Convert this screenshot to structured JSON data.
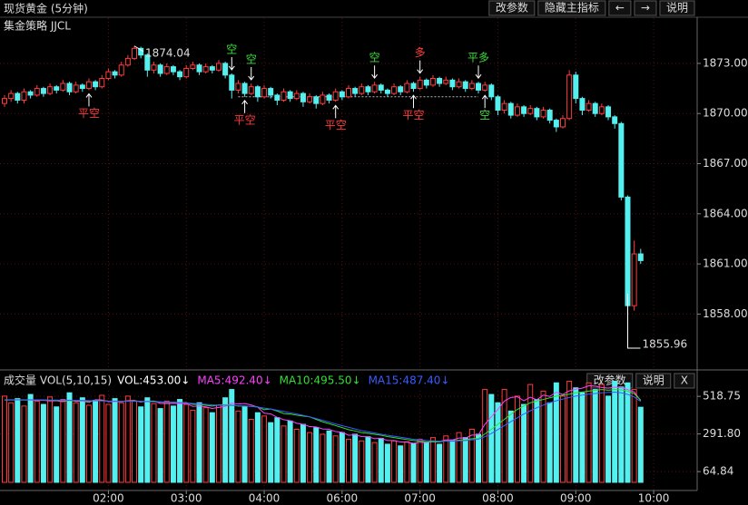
{
  "header": {
    "title": "现货黄金 (5分钟)",
    "buttons": [
      "改参数",
      "隐藏主指标",
      "←",
      "→",
      "说明"
    ]
  },
  "chart_data": [
    {
      "type": "candlestick",
      "title": "集金策略 JJCL",
      "up_color": "#ff3c3c",
      "down_color": "#54f0f0",
      "xlim": [
        -0.7,
        106.7
      ],
      "xticks": [
        {
          "value": 16,
          "label": "02:00"
        },
        {
          "value": 28,
          "label": "03:00"
        },
        {
          "value": 40,
          "label": "04:00"
        },
        {
          "value": 52,
          "label": "06:00"
        },
        {
          "value": 64,
          "label": "07:00"
        },
        {
          "value": 76,
          "label": "08:00"
        },
        {
          "value": 88,
          "label": "09:00"
        },
        {
          "value": 100,
          "label": "10:00"
        }
      ],
      "ylim": [
        1854.82,
        1875.6
      ],
      "yticks": [
        {
          "value": 1873,
          "label": "1873.00"
        },
        {
          "value": 1870,
          "label": "1870.00"
        },
        {
          "value": 1867,
          "label": "1867.00"
        },
        {
          "value": 1864,
          "label": "1864.00"
        },
        {
          "value": 1861,
          "label": "1861.00"
        },
        {
          "value": 1858,
          "label": "1858.00"
        }
      ],
      "grid": true,
      "candles": [
        [
          1870.6,
          1871.1,
          1870.4,
          1870.9
        ],
        [
          1870.9,
          1871.4,
          1870.7,
          1871.2
        ],
        [
          1871.2,
          1871.3,
          1870.6,
          1870.8
        ],
        [
          1870.8,
          1871.5,
          1870.6,
          1871.3
        ],
        [
          1871.3,
          1871.4,
          1870.9,
          1871.1
        ],
        [
          1871.1,
          1871.7,
          1871.0,
          1871.5
        ],
        [
          1871.5,
          1871.6,
          1871.0,
          1871.2
        ],
        [
          1871.2,
          1871.8,
          1871.1,
          1871.6
        ],
        [
          1871.6,
          1871.7,
          1871.2,
          1871.4
        ],
        [
          1871.4,
          1872.0,
          1871.3,
          1871.8
        ],
        [
          1871.8,
          1871.9,
          1871.1,
          1871.3
        ],
        [
          1871.3,
          1871.9,
          1871.2,
          1871.7
        ],
        [
          1871.7,
          1871.8,
          1871.3,
          1871.5
        ],
        [
          1871.5,
          1872.1,
          1871.4,
          1871.9
        ],
        [
          1871.9,
          1872.0,
          1871.4,
          1871.6
        ],
        [
          1871.6,
          1872.3,
          1871.5,
          1872.1
        ],
        [
          1872.1,
          1872.7,
          1872.0,
          1872.5
        ],
        [
          1872.5,
          1872.6,
          1872.1,
          1872.3
        ],
        [
          1872.3,
          1873.1,
          1872.2,
          1872.9
        ],
        [
          1872.9,
          1873.5,
          1872.8,
          1873.3
        ],
        [
          1873.3,
          1874.04,
          1873.2,
          1873.9
        ],
        [
          1873.9,
          1874.0,
          1873.3,
          1873.5
        ],
        [
          1873.5,
          1873.6,
          1872.2,
          1872.6
        ],
        [
          1872.6,
          1873.1,
          1872.4,
          1872.9
        ],
        [
          1872.9,
          1873.0,
          1872.2,
          1872.4
        ],
        [
          1872.4,
          1873.0,
          1872.3,
          1872.8
        ],
        [
          1872.8,
          1872.9,
          1872.3,
          1872.5
        ],
        [
          1872.5,
          1872.6,
          1872.0,
          1872.2
        ],
        [
          1872.2,
          1872.9,
          1872.1,
          1872.7
        ],
        [
          1872.7,
          1873.1,
          1872.6,
          1872.9
        ],
        [
          1872.9,
          1873.0,
          1872.3,
          1872.5
        ],
        [
          1872.5,
          1873.0,
          1872.4,
          1872.8
        ],
        [
          1872.8,
          1872.9,
          1872.4,
          1872.6
        ],
        [
          1872.6,
          1873.2,
          1872.5,
          1873.0
        ],
        [
          1873.0,
          1873.1,
          1872.1,
          1872.3
        ],
        [
          1872.3,
          1872.4,
          1870.9,
          1871.4
        ],
        [
          1871.4,
          1872.0,
          1871.2,
          1871.8
        ],
        [
          1871.8,
          1871.9,
          1871.0,
          1871.2
        ],
        [
          1871.2,
          1871.8,
          1871.1,
          1871.6
        ],
        [
          1871.6,
          1871.7,
          1870.7,
          1871.0
        ],
        [
          1871.0,
          1871.7,
          1870.9,
          1871.5
        ],
        [
          1871.5,
          1871.6,
          1870.9,
          1871.1
        ],
        [
          1871.1,
          1871.2,
          1870.5,
          1870.8
        ],
        [
          1870.8,
          1871.5,
          1870.7,
          1871.3
        ],
        [
          1871.3,
          1871.4,
          1870.7,
          1870.9
        ],
        [
          1870.9,
          1871.4,
          1870.8,
          1871.2
        ],
        [
          1871.2,
          1871.3,
          1870.4,
          1870.7
        ],
        [
          1870.7,
          1871.2,
          1870.6,
          1871.0
        ],
        [
          1871.0,
          1871.1,
          1870.3,
          1870.6
        ],
        [
          1870.6,
          1871.3,
          1870.5,
          1871.1
        ],
        [
          1871.1,
          1871.2,
          1870.6,
          1870.8
        ],
        [
          1870.8,
          1871.5,
          1870.7,
          1871.3
        ],
        [
          1871.3,
          1871.4,
          1870.8,
          1871.0
        ],
        [
          1871.0,
          1871.7,
          1870.9,
          1871.5
        ],
        [
          1871.5,
          1871.6,
          1871.0,
          1871.2
        ],
        [
          1871.2,
          1871.8,
          1871.1,
          1871.6
        ],
        [
          1871.6,
          1871.7,
          1871.1,
          1871.3
        ],
        [
          1871.3,
          1871.9,
          1871.2,
          1871.7
        ],
        [
          1871.7,
          1871.8,
          1871.2,
          1871.4
        ],
        [
          1871.4,
          1871.5,
          1871.0,
          1871.2
        ],
        [
          1871.2,
          1871.8,
          1871.1,
          1871.6
        ],
        [
          1871.6,
          1871.7,
          1871.1,
          1871.3
        ],
        [
          1871.3,
          1872.0,
          1871.2,
          1871.8
        ],
        [
          1871.8,
          1871.9,
          1871.3,
          1871.5
        ],
        [
          1871.5,
          1872.2,
          1871.4,
          1872.0
        ],
        [
          1872.0,
          1872.1,
          1871.5,
          1871.7
        ],
        [
          1871.7,
          1872.3,
          1871.6,
          1872.1
        ],
        [
          1872.1,
          1872.2,
          1871.6,
          1871.8
        ],
        [
          1871.8,
          1872.2,
          1871.7,
          1872.0
        ],
        [
          1872.0,
          1872.1,
          1871.4,
          1871.6
        ],
        [
          1871.6,
          1872.1,
          1871.5,
          1871.9
        ],
        [
          1871.9,
          1872.0,
          1871.3,
          1871.5
        ],
        [
          1871.5,
          1872.0,
          1871.4,
          1871.8
        ],
        [
          1871.8,
          1871.9,
          1871.2,
          1871.4
        ],
        [
          1871.4,
          1871.9,
          1871.3,
          1871.7
        ],
        [
          1871.7,
          1871.8,
          1870.8,
          1871.0
        ],
        [
          1871.0,
          1871.1,
          1869.9,
          1870.2
        ],
        [
          1870.2,
          1870.8,
          1870.0,
          1870.6
        ],
        [
          1870.6,
          1870.7,
          1869.7,
          1869.9
        ],
        [
          1869.9,
          1870.6,
          1869.8,
          1870.4
        ],
        [
          1870.4,
          1870.5,
          1869.8,
          1870.0
        ],
        [
          1870.0,
          1870.5,
          1869.9,
          1870.3
        ],
        [
          1870.3,
          1870.4,
          1869.6,
          1869.8
        ],
        [
          1869.8,
          1870.4,
          1869.7,
          1870.2
        ],
        [
          1870.2,
          1870.3,
          1869.4,
          1869.6
        ],
        [
          1869.6,
          1869.7,
          1868.9,
          1869.2
        ],
        [
          1869.2,
          1869.9,
          1869.1,
          1869.7
        ],
        [
          1869.7,
          1872.6,
          1869.6,
          1872.3
        ],
        [
          1872.3,
          1872.5,
          1870.6,
          1870.9
        ],
        [
          1870.9,
          1871.0,
          1869.9,
          1870.2
        ],
        [
          1870.2,
          1870.8,
          1870.1,
          1870.6
        ],
        [
          1870.6,
          1870.7,
          1869.8,
          1870.0
        ],
        [
          1870.0,
          1870.6,
          1869.9,
          1870.4
        ],
        [
          1870.4,
          1870.5,
          1869.6,
          1869.8
        ],
        [
          1869.8,
          1869.9,
          1869.1,
          1869.4
        ],
        [
          1869.4,
          1869.5,
          1864.8,
          1865.0
        ],
        [
          1865.0,
          1865.1,
          1855.96,
          1858.5
        ],
        [
          1858.5,
          1862.4,
          1858.2,
          1861.6
        ],
        [
          1861.6,
          1861.9,
          1861.0,
          1861.2
        ]
      ],
      "annotations": [
        {
          "text": "平空",
          "at": 13,
          "side": "below",
          "color": "#ff3c3c"
        },
        {
          "text": "空",
          "at": 35,
          "side": "above",
          "color": "#3cdc3c"
        },
        {
          "text": "空",
          "at": 38,
          "side": "above",
          "color": "#3cdc3c"
        },
        {
          "text": "平空",
          "at": 37,
          "side": "below",
          "color": "#ff3c3c"
        },
        {
          "text": "平空",
          "at": 51,
          "side": "below",
          "color": "#ff3c3c"
        },
        {
          "text": "空",
          "at": 57,
          "side": "above",
          "color": "#3cdc3c"
        },
        {
          "text": "多",
          "at": 64,
          "side": "above",
          "color": "#ff3c3c"
        },
        {
          "text": "平空",
          "at": 63,
          "side": "below",
          "color": "#ff3c3c"
        },
        {
          "text": "平多",
          "at": 73,
          "side": "above",
          "color": "#3cdc3c"
        },
        {
          "text": "空",
          "at": 74,
          "side": "below",
          "color": "#3cdc3c"
        }
      ],
      "level": {
        "from": 36,
        "to": 73,
        "value": 1871.0
      }
    },
    {
      "type": "volume",
      "title": "成交量 VOL(5,10,15)",
      "buttons": [
        "改参数",
        "说明",
        "X"
      ],
      "ylim": [
        0,
        601.5
      ],
      "yticks": [
        518.75,
        {
          "value": 291.8,
          "label": "291.80"
        },
        64.84
      ],
      "series": [
        {
          "name": "VOL:453.00↓",
          "color": "#ffffff",
          "values": [
            520,
            480,
            505,
            460,
            530,
            490,
            470,
            515,
            455,
            500,
            540,
            480,
            510,
            465,
            495,
            525,
            470,
            505,
            480,
            520,
            490,
            455,
            510,
            475,
            445,
            490,
            460,
            500,
            470,
            435,
            480,
            450,
            420,
            465,
            510,
            560,
            430,
            455,
            380,
            420,
            400,
            360,
            390,
            340,
            370,
            320,
            350,
            300,
            330,
            290,
            310,
            280,
            300,
            260,
            290,
            250,
            275,
            240,
            265,
            230,
            250,
            220,
            245,
            235,
            260,
            240,
            270,
            230,
            280,
            255,
            300,
            270,
            320,
            290,
            560,
            530,
            480,
            560,
            430,
            520,
            470,
            590,
            500,
            550,
            480,
            600,
            520,
            610,
            570,
            540,
            600,
            560,
            590,
            520,
            610,
            575,
            600,
            560,
            453
          ]
        },
        {
          "name": "MA5:492.40↓",
          "color": "#ff40ff",
          "values": [
            497,
            497,
            497,
            497,
            497,
            493,
            495,
            491,
            492,
            486,
            496,
            488,
            490,
            482,
            498,
            497,
            487,
            487,
            487,
            493,
            494,
            484,
            490,
            490,
            476,
            475,
            476,
            476,
            476,
            458,
            461,
            455,
            446,
            452,
            458,
            478,
            472,
            475,
            467,
            453,
            417,
            413,
            392,
            378,
            372,
            356,
            350,
            336,
            334,
            322,
            320,
            306,
            302,
            284,
            287,
            276,
            275,
            263,
            266,
            252,
            252,
            243,
            242,
            236,
            242,
            240,
            250,
            247,
            256,
            255,
            267,
            267,
            285,
            286,
            350,
            396,
            440,
            490,
            512,
            516,
            492,
            514,
            498,
            526,
            518,
            544,
            530,
            552,
            562,
            568,
            582,
            580,
            572,
            568,
            574,
            571,
            560,
            545,
            492.4
          ]
        },
        {
          "name": "MA10:495.50↓",
          "color": "#30e030",
          "values": [
            497,
            497,
            497,
            497,
            497,
            497,
            497,
            495,
            494,
            492,
            493,
            492,
            493,
            488,
            494,
            493,
            490,
            489,
            489,
            490,
            491,
            489,
            488,
            490,
            483,
            482,
            483,
            481,
            481,
            470,
            470,
            465,
            460,
            467,
            469,
            467,
            460,
            461,
            458,
            455,
            438,
            442,
            430,
            415,
            412,
            405,
            400,
            395,
            380,
            365,
            354,
            342,
            330,
            318,
            310,
            300,
            296,
            290,
            284,
            276,
            270,
            264,
            258,
            252,
            248,
            244,
            245,
            244,
            250,
            249,
            254,
            256,
            263,
            265,
            292,
            320,
            350,
            380,
            410,
            440,
            460,
            480,
            490,
            500,
            510,
            520,
            525,
            532,
            540,
            545,
            550,
            555,
            560,
            556,
            560,
            558,
            550,
            535,
            495.5
          ]
        },
        {
          "name": "MA15:487.40↓",
          "color": "#3a5cff",
          "values": [
            498,
            498,
            498,
            498,
            498,
            497,
            497,
            496,
            496,
            495,
            495,
            494,
            494,
            493,
            492,
            491,
            490,
            490,
            489,
            489,
            489,
            488,
            487,
            486,
            485,
            484,
            482,
            481,
            479,
            476,
            473,
            470,
            467,
            466,
            465,
            464,
            462,
            460,
            458,
            454,
            448,
            442,
            435,
            428,
            420,
            412,
            404,
            395,
            385,
            374,
            364,
            352,
            342,
            332,
            322,
            312,
            305,
            298,
            290,
            284,
            278,
            272,
            266,
            260,
            256,
            252,
            250,
            248,
            248,
            248,
            250,
            252,
            256,
            260,
            275,
            295,
            318,
            342,
            366,
            390,
            412,
            432,
            450,
            466,
            480,
            492,
            502,
            512,
            520,
            526,
            532,
            536,
            540,
            542,
            544,
            540,
            530,
            515,
            487.4
          ]
        }
      ]
    }
  ]
}
